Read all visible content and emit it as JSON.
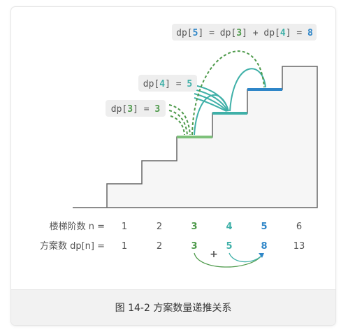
{
  "title_label": {
    "prefix": "dp[",
    "i1": "5",
    "mid1": "] = dp[",
    "i2": "3",
    "mid2": "] + dp[",
    "i3": "4",
    "mid3": "] = ",
    "result": "8"
  },
  "label_dp4": {
    "prefix": "dp[",
    "index": "4",
    "mid": "] = ",
    "value": "5"
  },
  "label_dp3": {
    "prefix": "dp[",
    "index": "3",
    "mid": "] = ",
    "value": "3"
  },
  "table": {
    "row1_label": "楼梯阶数 n =",
    "row2_label": "方案数 dp[n] =",
    "steps": [
      "1",
      "2",
      "3",
      "4",
      "5",
      "6"
    ],
    "ways": [
      "1",
      "2",
      "3",
      "5",
      "8",
      "13"
    ],
    "plus": "+"
  },
  "caption": "图 14-2   方案数量递推关系",
  "colors": {
    "green": "#4e9a4b",
    "green_step": "#7dc17a",
    "teal": "#3fb0a8",
    "blue": "#2f86c8",
    "gray_text": "#555555",
    "stair": "#555555"
  }
}
